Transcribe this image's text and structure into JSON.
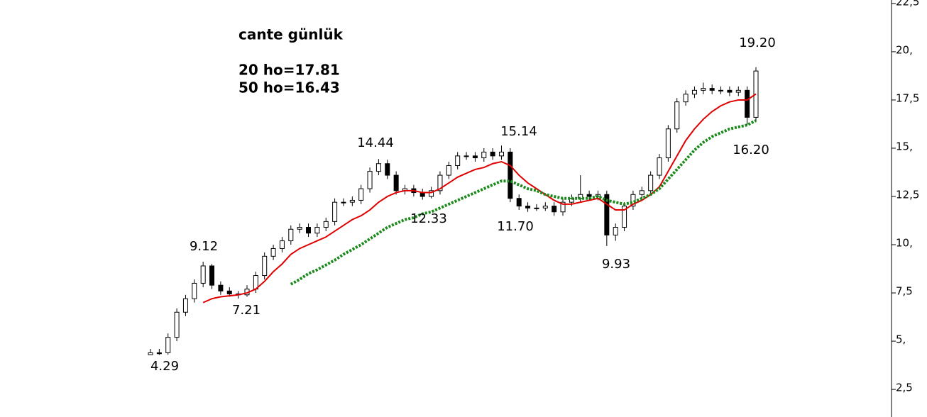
{
  "chart_data": {
    "type": "candlestick",
    "title": "cante günlük",
    "open": [
      4.3,
      4.4,
      4.4,
      5.2,
      6.5,
      7.2,
      8.0,
      8.9,
      7.9,
      7.6,
      7.45,
      7.4,
      7.7,
      8.4,
      9.4,
      9.8,
      10.2,
      10.8,
      10.9,
      10.6,
      10.9,
      11.2,
      12.2,
      12.2,
      12.3,
      12.9,
      13.8,
      14.2,
      13.6,
      12.8,
      12.9,
      12.7,
      12.5,
      12.8,
      13.6,
      14.1,
      14.6,
      14.6,
      14.5,
      14.8,
      14.6,
      14.8,
      12.4,
      12.0,
      11.9,
      11.9,
      12.0,
      11.7,
      12.2,
      12.4,
      12.6,
      12.5,
      12.6,
      10.5,
      10.9,
      12.0,
      12.6,
      12.8,
      13.6,
      14.5,
      16.0,
      17.4,
      17.8,
      18.0,
      18.1,
      18.0,
      18.0,
      17.9,
      18.0,
      16.6
    ],
    "high": [
      4.6,
      4.6,
      5.4,
      6.7,
      7.4,
      8.2,
      9.12,
      9.0,
      8.1,
      7.8,
      7.6,
      7.9,
      8.6,
      9.6,
      10.0,
      10.4,
      11.0,
      11.1,
      11.1,
      11.1,
      11.4,
      12.4,
      12.4,
      12.5,
      13.1,
      14.0,
      14.44,
      14.4,
      13.8,
      13.1,
      13.1,
      12.9,
      13.0,
      13.8,
      14.3,
      14.8,
      14.8,
      14.8,
      15.0,
      15.0,
      15.14,
      15.0,
      12.6,
      12.2,
      12.1,
      12.2,
      12.2,
      12.4,
      12.6,
      13.6,
      12.8,
      12.8,
      12.8,
      11.1,
      12.2,
      12.8,
      13.0,
      13.8,
      14.7,
      16.2,
      17.6,
      18.0,
      18.2,
      18.4,
      18.3,
      18.2,
      18.2,
      18.2,
      18.2,
      19.2
    ],
    "low": [
      4.3,
      4.29,
      4.3,
      5.0,
      6.3,
      7.0,
      7.8,
      7.7,
      7.4,
      7.3,
      7.21,
      7.3,
      7.5,
      8.2,
      9.2,
      9.6,
      10.0,
      10.6,
      10.4,
      10.4,
      10.7,
      11.0,
      12.0,
      12.0,
      12.1,
      12.7,
      13.6,
      13.4,
      12.6,
      12.6,
      12.5,
      12.33,
      12.4,
      12.6,
      13.4,
      13.9,
      14.4,
      14.3,
      14.3,
      14.4,
      14.4,
      12.2,
      11.8,
      11.7,
      11.75,
      11.75,
      11.5,
      11.5,
      12.0,
      12.2,
      12.3,
      12.3,
      9.93,
      10.2,
      10.7,
      11.8,
      12.4,
      12.6,
      13.4,
      14.3,
      15.8,
      17.2,
      17.6,
      17.8,
      17.8,
      17.8,
      17.7,
      17.7,
      16.2,
      16.4
    ],
    "close": [
      4.4,
      4.35,
      5.2,
      6.5,
      7.2,
      8.0,
      8.9,
      7.9,
      7.6,
      7.45,
      7.4,
      7.7,
      8.4,
      9.4,
      9.8,
      10.2,
      10.8,
      10.9,
      10.6,
      10.9,
      11.2,
      12.2,
      12.2,
      12.3,
      12.9,
      13.8,
      14.2,
      13.6,
      12.8,
      12.9,
      12.7,
      12.5,
      12.8,
      13.6,
      14.1,
      14.6,
      14.6,
      14.5,
      14.8,
      14.6,
      14.8,
      12.4,
      12.0,
      11.9,
      11.9,
      12.0,
      11.7,
      12.2,
      12.4,
      12.6,
      12.5,
      12.6,
      10.5,
      10.9,
      12.0,
      12.6,
      12.8,
      13.6,
      14.5,
      16.0,
      17.4,
      17.8,
      18.0,
      18.1,
      18.0,
      18.0,
      17.9,
      18.0,
      16.6,
      19.0
    ],
    "series": [
      {
        "name": "20 ho=17.81",
        "color": "#e00000",
        "values": [
          null,
          null,
          null,
          null,
          null,
          null,
          7.0,
          7.2,
          7.3,
          7.35,
          7.4,
          7.5,
          7.7,
          8.1,
          8.6,
          9.0,
          9.5,
          9.8,
          10.0,
          10.2,
          10.4,
          10.7,
          11.0,
          11.3,
          11.5,
          11.8,
          12.2,
          12.5,
          12.7,
          12.8,
          12.8,
          12.7,
          12.7,
          12.9,
          13.2,
          13.5,
          13.7,
          13.9,
          14.0,
          14.2,
          14.3,
          14.1,
          13.6,
          13.2,
          12.9,
          12.6,
          12.3,
          12.1,
          12.1,
          12.2,
          12.3,
          12.4,
          12.1,
          11.8,
          11.8,
          12.1,
          12.3,
          12.6,
          13.0,
          13.8,
          14.6,
          15.4,
          16.0,
          16.5,
          16.9,
          17.2,
          17.4,
          17.5,
          17.5,
          17.81
        ]
      },
      {
        "name": "50 ho=16.43",
        "color": "#1a8a1a",
        "values": [
          null,
          null,
          null,
          null,
          null,
          null,
          null,
          null,
          null,
          null,
          null,
          null,
          null,
          null,
          null,
          null,
          7.95,
          8.2,
          8.5,
          8.7,
          8.95,
          9.2,
          9.5,
          9.75,
          10.0,
          10.3,
          10.6,
          10.9,
          11.1,
          11.3,
          11.4,
          11.6,
          11.7,
          11.9,
          12.1,
          12.3,
          12.5,
          12.7,
          12.9,
          13.1,
          13.3,
          13.3,
          13.1,
          12.9,
          12.8,
          12.6,
          12.5,
          12.4,
          12.4,
          12.4,
          12.4,
          12.5,
          12.3,
          12.2,
          12.1,
          12.2,
          12.4,
          12.6,
          12.9,
          13.4,
          13.9,
          14.4,
          14.9,
          15.3,
          15.6,
          15.8,
          16.0,
          16.1,
          16.2,
          16.43
        ]
      }
    ],
    "annotations": [
      "9.12",
      "7.21",
      "4.29",
      "14.44",
      "12.33",
      "15.14",
      "11.70",
      "9.93",
      "16.20",
      "19.20"
    ],
    "ylim": [
      1.07,
      22.68
    ],
    "yticks": [
      {
        "value": 2.5,
        "label": "2,5"
      },
      {
        "value": 5,
        "label": "5,"
      },
      {
        "value": 7.5,
        "label": "7,5"
      },
      {
        "value": 10,
        "label": "10,"
      },
      {
        "value": 12.5,
        "label": "12,5"
      },
      {
        "value": 15,
        "label": "15,"
      },
      {
        "value": 17.5,
        "label": "17,5"
      },
      {
        "value": 20,
        "label": "20,"
      },
      {
        "value": 22.5,
        "label": "22,5"
      }
    ],
    "axis_position": "right"
  }
}
